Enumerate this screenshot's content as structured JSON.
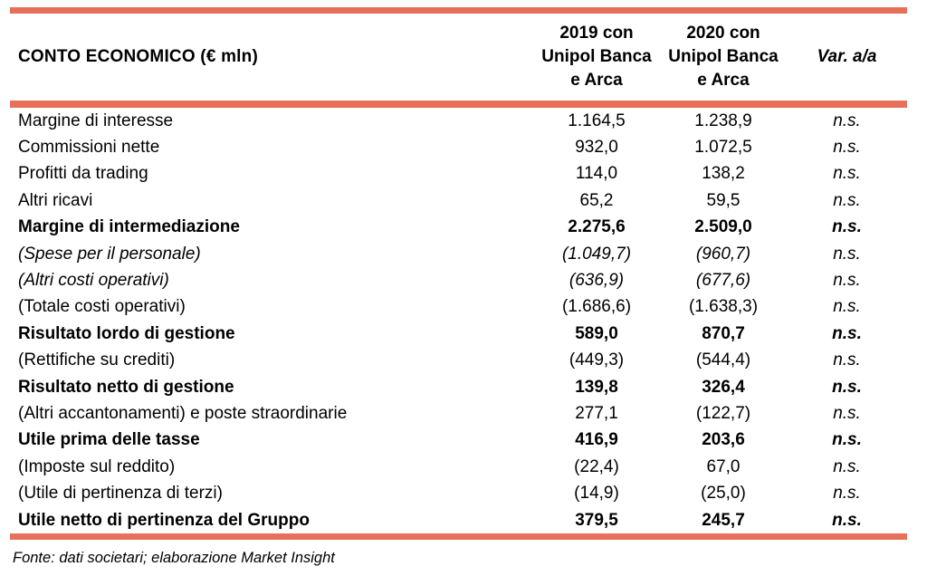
{
  "accent_color": "#E7705A",
  "table": {
    "title": "CONTO ECONOMICO (€ mln)",
    "columns": {
      "y2019": {
        "line1": "2019 con",
        "line2": "Unipol Banca",
        "line3": "e Arca"
      },
      "y2020": {
        "line1": "2020 con",
        "line2": "Unipol Banca",
        "line3": "e Arca"
      },
      "variation": {
        "label": "Var. a/a"
      }
    },
    "rows": [
      {
        "label": "Margine di interesse",
        "v2019": "1.164,5",
        "v2020": "1.238,9",
        "var": "n.s.",
        "style": "normal"
      },
      {
        "label": "Commissioni nette",
        "v2019": "932,0",
        "v2020": "1.072,5",
        "var": "n.s.",
        "style": "normal"
      },
      {
        "label": "Profitti da trading",
        "v2019": "114,0",
        "v2020": "138,2",
        "var": "n.s.",
        "style": "normal"
      },
      {
        "label": "Altri ricavi",
        "v2019": "65,2",
        "v2020": "59,5",
        "var": "n.s.",
        "style": "normal"
      },
      {
        "label": "Margine di intermediazione",
        "v2019": "2.275,6",
        "v2020": "2.509,0",
        "var": "n.s.",
        "style": "bold"
      },
      {
        "label": "(Spese per il personale)",
        "v2019": "(1.049,7)",
        "v2020": "(960,7)",
        "var": "n.s.",
        "style": "italic"
      },
      {
        "label": "(Altri costi operativi)",
        "v2019": "(636,9)",
        "v2020": "(677,6)",
        "var": "n.s.",
        "style": "italic"
      },
      {
        "label": "(Totale costi operativi)",
        "v2019": "(1.686,6)",
        "v2020": "(1.638,3)",
        "var": "n.s.",
        "style": "normal"
      },
      {
        "label": "Risultato lordo di gestione",
        "v2019": "589,0",
        "v2020": "870,7",
        "var": "n.s.",
        "style": "bold"
      },
      {
        "label": "(Rettifiche su crediti)",
        "v2019": "(449,3)",
        "v2020": "(544,4)",
        "var": "n.s.",
        "style": "normal"
      },
      {
        "label": "Risultato netto di gestione",
        "v2019": "139,8",
        "v2020": "326,4",
        "var": "n.s.",
        "style": "bold"
      },
      {
        "label": "(Altri accantonamenti) e poste straordinarie",
        "v2019": "277,1",
        "v2020": "(122,7)",
        "var": "n.s.",
        "style": "normal"
      },
      {
        "label": "Utile prima delle tasse",
        "v2019": "416,9",
        "v2020": "203,6",
        "var": "n.s.",
        "style": "bold"
      },
      {
        "label": "(Imposte sul reddito)",
        "v2019": "(22,4)",
        "v2020": "67,0",
        "var": "n.s.",
        "style": "normal"
      },
      {
        "label": "(Utile di pertinenza di terzi)",
        "v2019": "(14,9)",
        "v2020": "(25,0)",
        "var": "n.s.",
        "style": "normal"
      },
      {
        "label": "Utile netto di pertinenza del Gruppo",
        "v2019": "379,5",
        "v2020": "245,7",
        "var": "n.s.",
        "style": "bold"
      }
    ]
  },
  "footer": {
    "source": "Fonte: dati societari; elaborazione Market Insight"
  }
}
